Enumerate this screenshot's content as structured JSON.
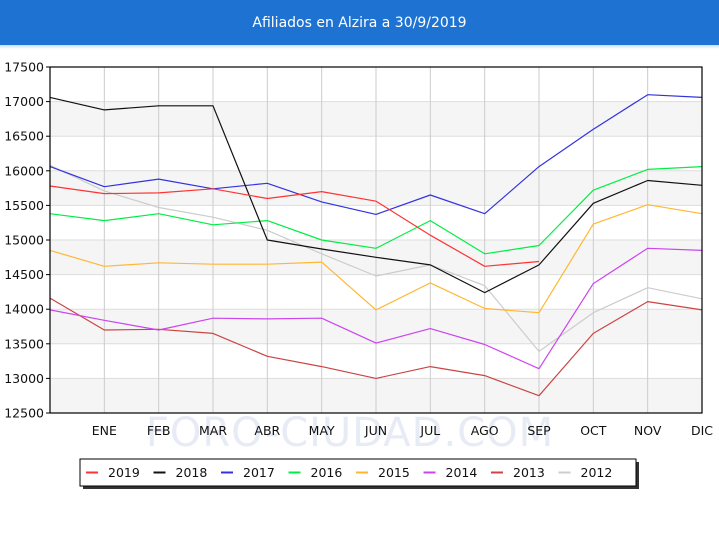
{
  "header": {
    "title": "Afiliados en Alzira a 30/9/2019"
  },
  "watermark": "FORO-CIUDAD.COM",
  "chart_data": {
    "type": "line",
    "title": "Afiliados en Alzira a 30/9/2019",
    "xlabel": "",
    "ylabel": "",
    "categories": [
      "",
      "ENE",
      "FEB",
      "MAR",
      "ABR",
      "MAY",
      "JUN",
      "JUL",
      "AGO",
      "SEP",
      "OCT",
      "NOV",
      "DIC"
    ],
    "yticks": [
      12500,
      13000,
      13500,
      14000,
      14500,
      15000,
      15500,
      16000,
      16500,
      17000,
      17500
    ],
    "ylim": [
      12500,
      17500
    ],
    "grid": true,
    "legend_position": "bottom",
    "series": [
      {
        "name": "2019",
        "color": "#ff3333",
        "values": [
          15780,
          15670,
          15680,
          15740,
          15600,
          15700,
          15560,
          15070,
          14620,
          14690,
          null,
          null,
          null
        ]
      },
      {
        "name": "2018",
        "color": "#111111",
        "values": [
          17060,
          16880,
          16940,
          16940,
          15000,
          14870,
          14750,
          14640,
          14240,
          14640,
          15530,
          15860,
          15790
        ]
      },
      {
        "name": "2017",
        "color": "#3333dd",
        "values": [
          16060,
          15770,
          15880,
          15740,
          15820,
          15550,
          15370,
          15650,
          15380,
          16060,
          16600,
          17100,
          17060
        ]
      },
      {
        "name": "2016",
        "color": "#00ee44",
        "values": [
          15380,
          15280,
          15380,
          15220,
          15280,
          15000,
          14880,
          15280,
          14800,
          14920,
          15720,
          16020,
          16060
        ]
      },
      {
        "name": "2015",
        "color": "#ffb733",
        "values": [
          14850,
          14620,
          14670,
          14650,
          14650,
          14680,
          13990,
          14380,
          14010,
          13950,
          15230,
          15510,
          15380
        ]
      },
      {
        "name": "2014",
        "color": "#cc44ee",
        "values": [
          13990,
          13840,
          13700,
          13870,
          13860,
          13870,
          13510,
          13720,
          13490,
          13140,
          14370,
          14880,
          14850
        ]
      },
      {
        "name": "2013",
        "color": "#cc4444",
        "values": [
          14160,
          13700,
          13710,
          13650,
          13320,
          13170,
          13000,
          13170,
          13040,
          12750,
          13650,
          14110,
          13990
        ]
      },
      {
        "name": "2012",
        "color": "#cccccc",
        "values": [
          16080,
          15710,
          15470,
          15330,
          15140,
          14800,
          14480,
          14640,
          14340,
          13390,
          13950,
          14310,
          14150
        ]
      }
    ]
  }
}
